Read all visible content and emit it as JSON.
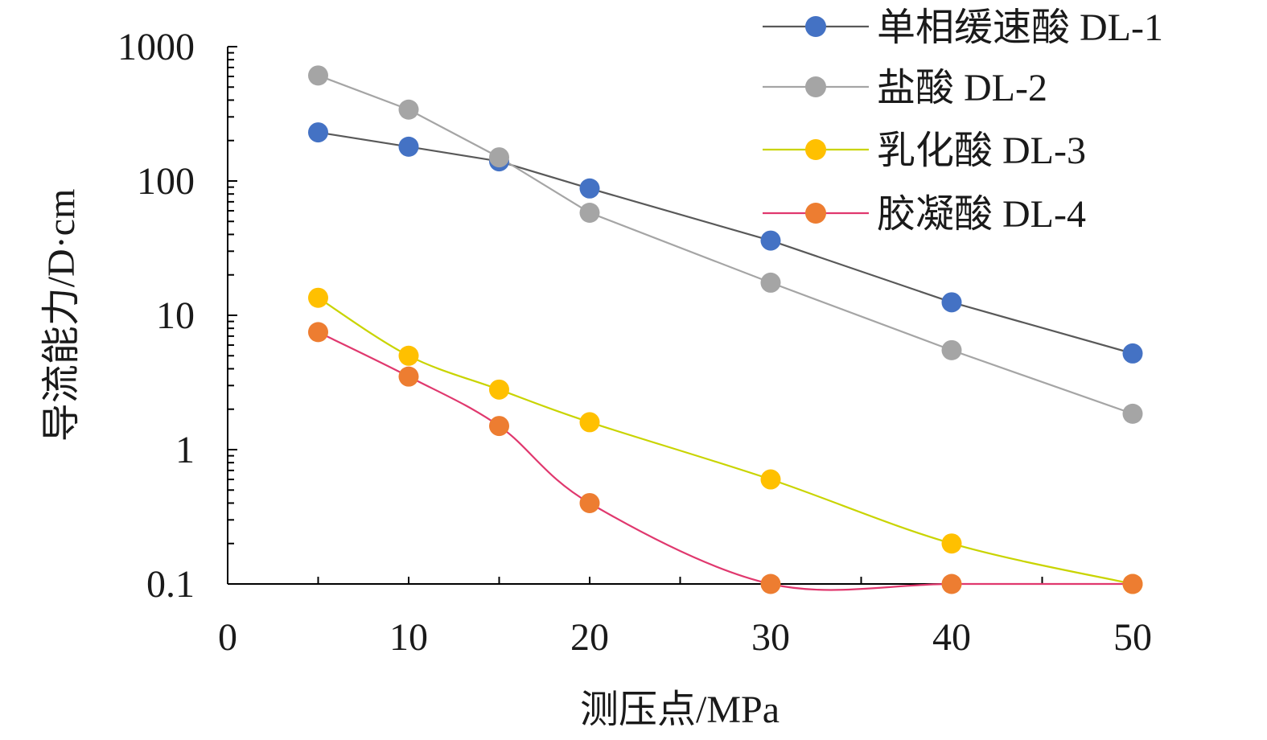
{
  "chart_data": {
    "type": "line",
    "title": "",
    "xlabel": "测压点/MPa",
    "ylabel": "导流能力/D·cm",
    "xlim": [
      0,
      50
    ],
    "ylim": [
      0.1,
      1000
    ],
    "yscale": "log",
    "grid": false,
    "legend_position": "top-right",
    "x_ticks": [
      "0",
      "10",
      "20",
      "30",
      "40",
      "50"
    ],
    "y_ticks": [
      "0.1",
      "1",
      "10",
      "100",
      "1000"
    ],
    "x": [
      5,
      10,
      15,
      20,
      30,
      40,
      50
    ],
    "series": [
      {
        "name": "单相缓速酸 DL-1",
        "color": "#4472c4",
        "line_color": "#595959",
        "values": [
          230,
          180,
          140,
          88,
          36,
          12.5,
          5.2
        ]
      },
      {
        "name": "盐酸 DL-2",
        "color": "#a5a5a5",
        "line_color": "#a5a5a5",
        "values": [
          610,
          340,
          150,
          58,
          17.5,
          5.5,
          1.85
        ]
      },
      {
        "name": "乳化酸 DL-3",
        "color": "#ffc000",
        "line_color": "#c9d400",
        "values": [
          13.5,
          5,
          2.8,
          1.6,
          0.6,
          0.2,
          0.1
        ]
      },
      {
        "name": "胶凝酸 DL-4",
        "color": "#ed7d31",
        "line_color": "#e0386e",
        "values": [
          7.5,
          3.5,
          1.5,
          0.4,
          0.1,
          0.1,
          0.1
        ]
      }
    ]
  }
}
